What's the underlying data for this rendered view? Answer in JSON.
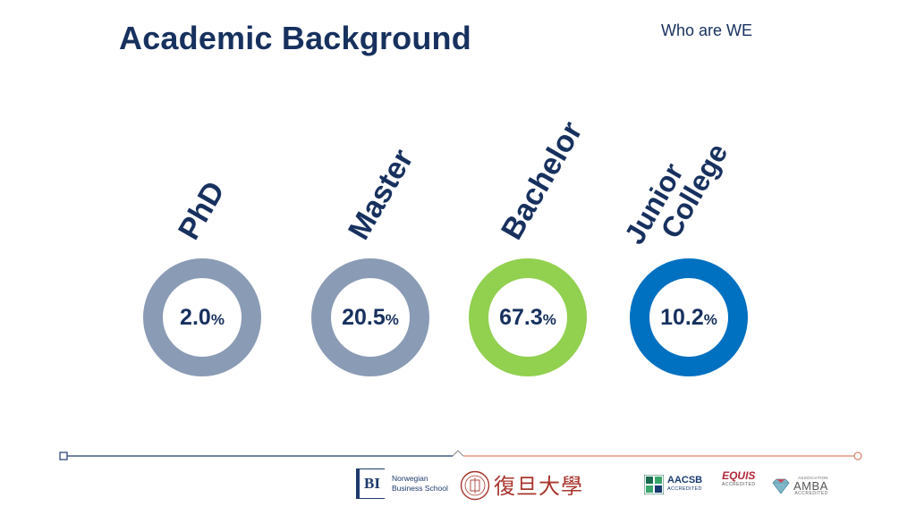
{
  "header": {
    "title": "Academic Background",
    "subtitle": "Who are WE"
  },
  "categories": [
    {
      "label": "PhD",
      "value": "2.0",
      "unit": "%",
      "ring_color": "#8a9bb5"
    },
    {
      "label": "Master",
      "value": "20.5",
      "unit": "%",
      "ring_color": "#8a9bb5"
    },
    {
      "label": "Bachelor",
      "value": "67.3",
      "unit": "%",
      "ring_color": "#92d050"
    },
    {
      "label_line1": "Junior",
      "label_line2": "College",
      "value": "10.2",
      "unit": "%",
      "ring_color": "#0070c0"
    }
  ],
  "footer": {
    "line_left_color": "#1f3c6e",
    "line_right_color": "#d9826a",
    "bi_mark": "BI",
    "bi_line1": "Norwegian",
    "bi_line2": "Business School",
    "fudan_chars": "復旦大學",
    "aacsb_name": "AACSB",
    "aacsb_sub": "ACCREDITED",
    "equis_name": "EQUIS",
    "equis_sub": "ACCREDITED",
    "amba_assoc": "ASSOCIATION",
    "amba_name": "AMBA",
    "amba_sub": "ACCREDITED"
  }
}
